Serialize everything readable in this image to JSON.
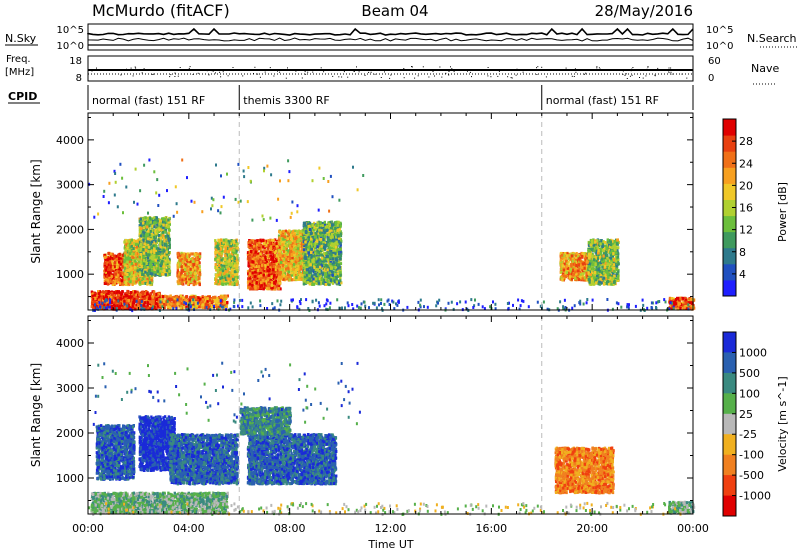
{
  "header": {
    "station": "McMurdo (fitACF)",
    "beam": "Beam 04",
    "date": "28/May/2016"
  },
  "top_panels": {
    "nsky_label": "N.Sky",
    "nsearch_label": "N.Search",
    "freq_label_line1": "Freq.",
    "freq_label_line2": "[MHz]",
    "nave_label": "Nave",
    "cpid_label": "CPID",
    "nsky_ticks": [
      "10^5",
      "10^0"
    ],
    "nsearch_ticks": [
      "10^5",
      "10^0"
    ],
    "freq_ticks": [
      "18",
      "8"
    ],
    "nave_ticks": [
      "60",
      "0"
    ],
    "cpid_segments": [
      {
        "label": "normal (fast) 151 RF",
        "start": 0,
        "end": 6.0
      },
      {
        "label": "themis 3300 RF",
        "start": 6.0,
        "end": 18.0
      },
      {
        "label": "normal (fast) 151 RF",
        "start": 18.0,
        "end": 24.0
      }
    ]
  },
  "chart_data": [
    {
      "type": "heatmap",
      "name": "power",
      "ylabel": "Slant Range [km]",
      "xlabel": "Time UT",
      "xlim": [
        0,
        24
      ],
      "ylim": [
        200,
        4600
      ],
      "x_ticks": [
        "00:00",
        "04:00",
        "08:00",
        "12:00",
        "16:00",
        "20:00",
        "00:00"
      ],
      "x_tick_values": [
        0,
        4,
        8,
        12,
        16,
        20,
        24
      ],
      "y_ticks": [
        1000,
        2000,
        3000,
        4000
      ],
      "colorbar": {
        "label": "Power [dB]",
        "range": [
          0,
          32
        ],
        "ticks": [
          "4",
          "8",
          "12",
          "16",
          "20",
          "24",
          "28"
        ],
        "colors": [
          "#1f1fff",
          "#2050c0",
          "#2e7a8c",
          "#3f9a5e",
          "#6cbf3c",
          "#b0d030",
          "#f0c828",
          "#f7a020",
          "#f07018",
          "#e84010",
          "#e00000"
        ]
      },
      "blobs": [
        {
          "t0": 0.6,
          "t1": 1.6,
          "r0": 800,
          "r1": 1500,
          "v": 26
        },
        {
          "t0": 1.4,
          "t1": 2.5,
          "r0": 800,
          "r1": 1800,
          "v": 18
        },
        {
          "t0": 2.0,
          "t1": 3.2,
          "r0": 1000,
          "r1": 2300,
          "v": 14
        },
        {
          "t0": 3.5,
          "t1": 4.4,
          "r0": 800,
          "r1": 1500,
          "v": 22
        },
        {
          "t0": 5.0,
          "t1": 5.9,
          "r0": 800,
          "r1": 1800,
          "v": 16
        },
        {
          "t0": 6.3,
          "t1": 7.6,
          "r0": 700,
          "r1": 1800,
          "v": 26
        },
        {
          "t0": 7.5,
          "t1": 8.7,
          "r0": 900,
          "r1": 2000,
          "v": 20
        },
        {
          "t0": 8.5,
          "t1": 10.0,
          "r0": 800,
          "r1": 2200,
          "v": 12
        },
        {
          "t0": 0.1,
          "t1": 2.8,
          "r0": 250,
          "r1": 650,
          "v": 28
        },
        {
          "t0": 2.8,
          "t1": 5.5,
          "r0": 280,
          "r1": 550,
          "v": 24
        },
        {
          "t0": 18.7,
          "t1": 20.0,
          "r0": 900,
          "r1": 1500,
          "v": 22
        },
        {
          "t0": 19.8,
          "t1": 21.0,
          "r0": 800,
          "r1": 1800,
          "v": 14
        },
        {
          "t0": 23.0,
          "t1": 24.0,
          "r0": 250,
          "r1": 500,
          "v": 26
        }
      ]
    },
    {
      "type": "heatmap",
      "name": "velocity",
      "ylabel": "Slant Range [km]",
      "xlabel": "Time UT",
      "xlim": [
        0,
        24
      ],
      "ylim": [
        200,
        4600
      ],
      "x_ticks": [
        "00:00",
        "04:00",
        "08:00",
        "12:00",
        "16:00",
        "20:00",
        "00:00"
      ],
      "x_tick_values": [
        0,
        4,
        8,
        12,
        16,
        20,
        24
      ],
      "y_ticks": [
        1000,
        2000,
        3000,
        4000
      ],
      "colorbar": {
        "label": "Velocity [m s^-1]",
        "ticks": [
          "1000",
          "500",
          "100",
          "25",
          "-25",
          "-100",
          "-500",
          "-1000"
        ],
        "colors": [
          "#1a2ad8",
          "#2a60b0",
          "#3a8a80",
          "#56b04a",
          "#b8b8b8",
          "#f0b020",
          "#f08020",
          "#f04010",
          "#e00000"
        ]
      },
      "blobs": [
        {
          "t0": 0.3,
          "t1": 1.8,
          "r0": 1000,
          "r1": 2200,
          "v": 1
        },
        {
          "t0": 2.0,
          "t1": 3.4,
          "r0": 1200,
          "r1": 2400,
          "v": 0
        },
        {
          "t0": 3.2,
          "t1": 5.9,
          "r0": 900,
          "r1": 2000,
          "v": 1
        },
        {
          "t0": 6.3,
          "t1": 9.8,
          "r0": 900,
          "r1": 2000,
          "v": 1
        },
        {
          "t0": 6.0,
          "t1": 8.0,
          "r0": 2000,
          "r1": 2600,
          "v": 2
        },
        {
          "t0": 0.1,
          "t1": 5.5,
          "r0": 250,
          "r1": 700,
          "v": 3
        },
        {
          "t0": 18.5,
          "t1": 20.8,
          "r0": 700,
          "r1": 1700,
          "v": 6
        },
        {
          "t0": 23.0,
          "t1": 24.0,
          "r0": 250,
          "r1": 500,
          "v": 3
        }
      ]
    }
  ]
}
